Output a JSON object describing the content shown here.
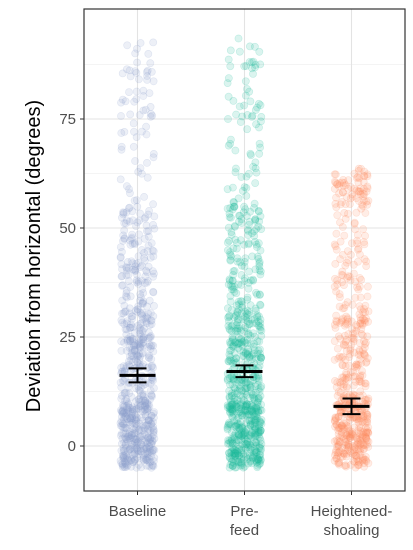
{
  "chart_data": {
    "type": "scatter",
    "subtype": "jitter-strip-with-mean-and-error-bars",
    "title": "",
    "xlabel": "",
    "ylabel": "Deviation from horizontal (degrees)",
    "ylim": [
      -10,
      100
    ],
    "yticks": [
      0,
      25,
      50,
      75
    ],
    "grid": true,
    "legend": "none",
    "categories": [
      {
        "lines": [
          "Baseline"
        ]
      },
      {
        "lines": [
          "Pre-",
          "feed"
        ]
      },
      {
        "lines": [
          "Heightened-",
          "shoaling"
        ]
      }
    ],
    "series": [
      {
        "color": "#8da0cb",
        "mean": 16.2,
        "ci_low": 14.6,
        "ci_high": 17.8,
        "point_count": 700,
        "min": -5,
        "max": 94
      },
      {
        "color": "#1cbc9a",
        "mean": 17.1,
        "ci_low": 15.8,
        "ci_high": 18.5,
        "point_count": 760,
        "min": -5,
        "max": 94
      },
      {
        "color": "#fc8d62",
        "mean": 9.1,
        "ci_low": 7.3,
        "ci_high": 10.9,
        "point_count": 560,
        "min": -5,
        "max": 64
      }
    ]
  }
}
